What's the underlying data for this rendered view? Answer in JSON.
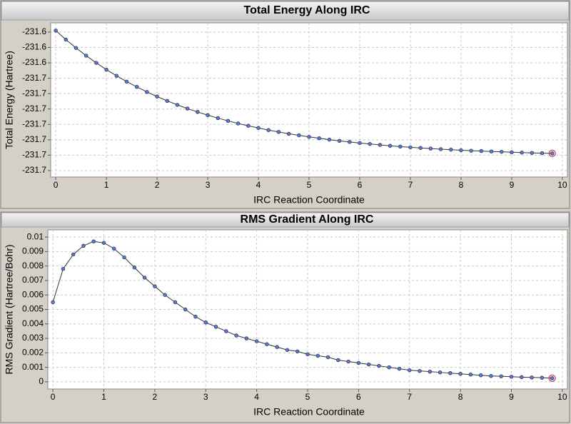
{
  "chart_data": [
    {
      "type": "line",
      "title": "Total Energy Along IRC",
      "xlabel": "IRC Reaction Coordinate",
      "ylabel": "Total Energy (Hartree)",
      "x": [
        0,
        0.2,
        0.4,
        0.6,
        0.8,
        1,
        1.2,
        1.4,
        1.6,
        1.8,
        2,
        2.2,
        2.4,
        2.6,
        2.8,
        3,
        3.2,
        3.4,
        3.6,
        3.8,
        4,
        4.2,
        4.4,
        4.6,
        4.8,
        5,
        5.2,
        5.4,
        5.6,
        5.8,
        6,
        6.2,
        6.4,
        6.6,
        6.8,
        7,
        7.2,
        7.4,
        7.6,
        7.8,
        8,
        8.2,
        8.4,
        8.6,
        8.8,
        9,
        9.2,
        9.4,
        9.6,
        9.8
      ],
      "series": [
        {
          "color": "#5a78d8",
          "values": [
            -231.619,
            -231.6249,
            -231.6303,
            -231.6353,
            -231.64,
            -231.6444,
            -231.6484,
            -231.6522,
            -231.6556,
            -231.6589,
            -231.6619,
            -231.6647,
            -231.6673,
            -231.6697,
            -231.6719,
            -231.674,
            -231.6759,
            -231.6777,
            -231.6794,
            -231.6809,
            -231.6823,
            -231.6837,
            -231.6849,
            -231.6861,
            -231.6871,
            -231.6881,
            -231.689,
            -231.6899,
            -231.6907,
            -231.6914,
            -231.6921,
            -231.6927,
            -231.6933,
            -231.6939,
            -231.6944,
            -231.6949,
            -231.6953,
            -231.6957,
            -231.6961,
            -231.6964,
            -231.6968,
            -231.6971,
            -231.6973,
            -231.6976,
            -231.6978,
            -231.6981,
            -231.6983,
            -231.6985,
            -231.6987,
            -231.6988
          ]
        }
      ],
      "xlim": [
        -0.1,
        10.1
      ],
      "xticks": [
        0,
        1,
        2,
        3,
        4,
        5,
        6,
        7,
        8,
        9,
        10
      ],
      "ylim": [
        -231.7142,
        -231.614
      ],
      "yticks": [
        {
          "value": -231.62,
          "label": "-231.6"
        },
        {
          "value": -231.63,
          "label": "-231.6"
        },
        {
          "value": -231.64,
          "label": "-231.6"
        },
        {
          "value": -231.65,
          "label": "-231.7"
        },
        {
          "value": -231.66,
          "label": "-231.7"
        },
        {
          "value": -231.67,
          "label": "-231.7"
        },
        {
          "value": -231.68,
          "label": "-231.7"
        },
        {
          "value": -231.69,
          "label": "-231.7"
        },
        {
          "value": -231.7,
          "label": "-231.7"
        },
        {
          "value": -231.71,
          "label": "-231.7"
        }
      ],
      "grid": true
    },
    {
      "type": "line",
      "title": "RMS Gradient Along IRC",
      "xlabel": "IRC Reaction Coordinate",
      "ylabel": "RMS Gradient (Hartree/Bohr)",
      "x": [
        0,
        0.2,
        0.4,
        0.6,
        0.8,
        1,
        1.2,
        1.4,
        1.6,
        1.8,
        2,
        2.2,
        2.4,
        2.6,
        2.8,
        3,
        3.2,
        3.4,
        3.6,
        3.8,
        4,
        4.2,
        4.4,
        4.6,
        4.8,
        5,
        5.2,
        5.4,
        5.6,
        5.8,
        6,
        6.2,
        6.4,
        6.6,
        6.8,
        7,
        7.2,
        7.4,
        7.6,
        7.8,
        8,
        8.2,
        8.4,
        8.6,
        8.8,
        9,
        9.2,
        9.4,
        9.6,
        9.8
      ],
      "series": [
        {
          "color": "#5a78d8",
          "values": [
            0.0055,
            0.0078,
            0.0088,
            0.0094,
            0.0097,
            0.0096,
            0.0092,
            0.0086,
            0.0079,
            0.0072,
            0.0066,
            0.006,
            0.0055,
            0.005,
            0.0045,
            0.0041,
            0.0038,
            0.0035,
            0.0032,
            0.003,
            0.0028,
            0.0026,
            0.0024,
            0.0022,
            0.0021,
            0.0019,
            0.0018,
            0.0017,
            0.0015,
            0.0014,
            0.0013,
            0.0012,
            0.0011,
            0.001,
            0.0009,
            0.0008,
            0.00075,
            0.0007,
            0.00065,
            0.0006,
            0.00055,
            0.0005,
            0.00045,
            0.0004,
            0.00038,
            0.00035,
            0.00032,
            0.0003,
            0.00028,
            0.00025
          ]
        }
      ],
      "xlim": [
        -0.1,
        10.1
      ],
      "xticks": [
        0,
        1,
        2,
        3,
        4,
        5,
        6,
        7,
        8,
        9,
        10
      ],
      "ylim": [
        -0.0005,
        0.0105
      ],
      "yticks": [
        0,
        0.001,
        0.002,
        0.003,
        0.004,
        0.005,
        0.006,
        0.007,
        0.008,
        0.009,
        0.01
      ],
      "grid": true
    }
  ]
}
